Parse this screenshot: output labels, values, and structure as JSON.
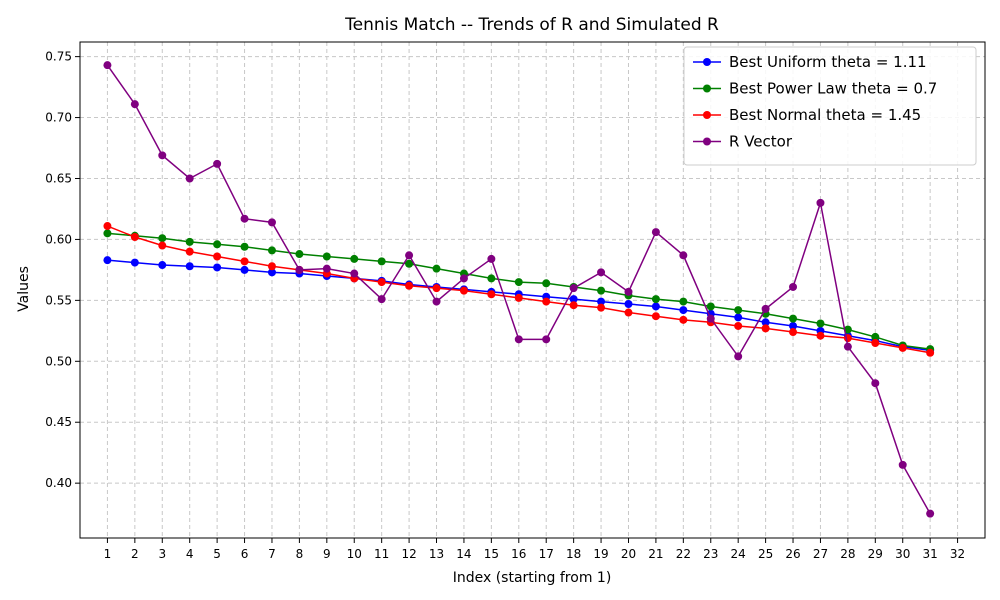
{
  "chart_data": {
    "type": "line",
    "title": "Tennis Match -- Trends of R and Simulated R",
    "xlabel": "Index (starting from 1)",
    "ylabel": "Values",
    "xlim": [
      0,
      33
    ],
    "ylim": [
      0.355,
      0.762
    ],
    "x_ticks": [
      1,
      2,
      3,
      4,
      5,
      6,
      7,
      8,
      9,
      10,
      11,
      12,
      13,
      14,
      15,
      16,
      17,
      18,
      19,
      20,
      21,
      22,
      23,
      24,
      25,
      26,
      27,
      28,
      29,
      30,
      31,
      32
    ],
    "y_ticks": [
      0.4,
      0.45,
      0.5,
      0.55,
      0.6,
      0.65,
      0.7,
      0.75
    ],
    "y_tick_labels": [
      "0.40",
      "0.45",
      "0.50",
      "0.55",
      "0.60",
      "0.65",
      "0.70",
      "0.75"
    ],
    "grid": true,
    "legend_position": "top-right",
    "x": [
      1,
      2,
      3,
      4,
      5,
      6,
      7,
      8,
      9,
      10,
      11,
      12,
      13,
      14,
      15,
      16,
      17,
      18,
      19,
      20,
      21,
      22,
      23,
      24,
      25,
      26,
      27,
      28,
      29,
      30,
      31
    ],
    "series": [
      {
        "name": "Best Uniform theta = 1.11",
        "color": "#0000ff",
        "values": [
          0.583,
          0.581,
          0.579,
          0.578,
          0.577,
          0.575,
          0.573,
          0.572,
          0.57,
          0.568,
          0.566,
          0.563,
          0.561,
          0.559,
          0.557,
          0.555,
          0.553,
          0.551,
          0.549,
          0.547,
          0.545,
          0.542,
          0.539,
          0.536,
          0.532,
          0.529,
          0.525,
          0.521,
          0.517,
          0.512,
          0.509
        ]
      },
      {
        "name": "Best Power Law theta = 0.7",
        "color": "#008000",
        "values": [
          0.605,
          0.603,
          0.601,
          0.598,
          0.596,
          0.594,
          0.591,
          0.588,
          0.586,
          0.584,
          0.582,
          0.58,
          0.576,
          0.572,
          0.568,
          0.565,
          0.564,
          0.561,
          0.558,
          0.554,
          0.551,
          0.549,
          0.545,
          0.542,
          0.539,
          0.535,
          0.531,
          0.526,
          0.52,
          0.513,
          0.51
        ]
      },
      {
        "name": "Best Normal theta = 1.45",
        "color": "#ff0000",
        "values": [
          0.611,
          0.602,
          0.595,
          0.59,
          0.586,
          0.582,
          0.578,
          0.575,
          0.572,
          0.568,
          0.565,
          0.562,
          0.56,
          0.558,
          0.555,
          0.552,
          0.549,
          0.546,
          0.544,
          0.54,
          0.537,
          0.534,
          0.532,
          0.529,
          0.527,
          0.524,
          0.521,
          0.519,
          0.515,
          0.511,
          0.507
        ]
      },
      {
        "name": "R Vector",
        "color": "#800080",
        "values": [
          0.743,
          0.711,
          0.669,
          0.65,
          0.662,
          0.617,
          0.614,
          0.575,
          0.576,
          0.572,
          0.551,
          0.587,
          0.549,
          0.568,
          0.584,
          0.518,
          0.518,
          0.56,
          0.573,
          0.557,
          0.606,
          0.587,
          0.535,
          0.504,
          0.543,
          0.561,
          0.63,
          0.512,
          0.482,
          0.415,
          0.375
        ]
      }
    ]
  }
}
